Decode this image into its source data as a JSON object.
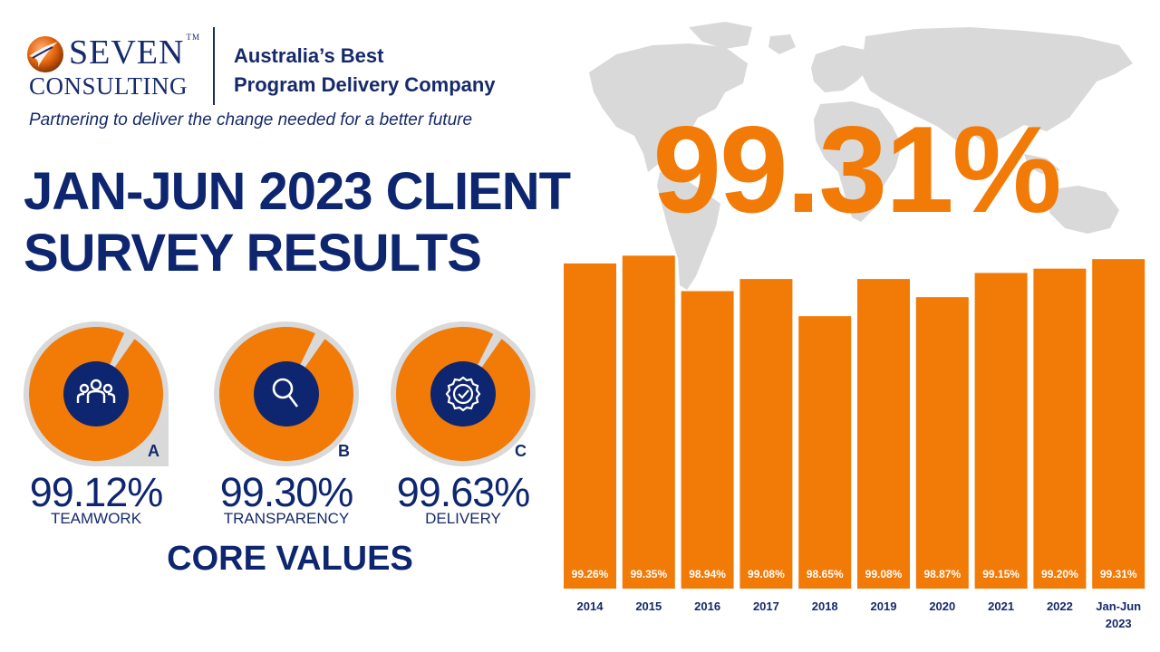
{
  "brand": {
    "name_top": "SEVEN",
    "name_bottom": "CONSULTING",
    "tm": "TM",
    "tagline_line1": "Australia’s Best",
    "tagline_line2": "Program Delivery Company",
    "subtitle": "Partnering to deliver the change needed for a better future"
  },
  "headline": {
    "line1": "JAN-JUN 2023 CLIENT",
    "line2": "SURVEY RESULTS"
  },
  "core_values": {
    "title": "CORE VALUES",
    "items": [
      {
        "letter": "A",
        "percent": "99.12%",
        "label": "TEAMWORK",
        "icon": "team-icon",
        "fill_fraction": 0.9912
      },
      {
        "letter": "B",
        "percent": "99.30%",
        "label": "TRANSPARENCY",
        "icon": "magnifier-icon",
        "fill_fraction": 0.993
      },
      {
        "letter": "C",
        "percent": "99.63%",
        "label": "DELIVERY",
        "icon": "badge-check-icon",
        "fill_fraction": 0.9963
      }
    ]
  },
  "highlight": {
    "value": "99.31%"
  },
  "colors": {
    "orange": "#F27A07",
    "navy": "#0E2670",
    "dial_bg": "#D9D9D9",
    "map": "#D9D9D9"
  },
  "chart_data": {
    "type": "bar",
    "categories": [
      "2014",
      "2015",
      "2016",
      "2017",
      "2018",
      "2019",
      "2020",
      "2021",
      "2022",
      "Jan-Jun 2023"
    ],
    "values": [
      99.26,
      99.35,
      98.94,
      99.08,
      98.65,
      99.08,
      98.87,
      99.15,
      99.2,
      99.31
    ],
    "data_labels": [
      "99.26%",
      "99.35%",
      "98.94%",
      "99.08%",
      "98.65%",
      "99.08%",
      "98.87%",
      "99.15%",
      "99.20%",
      "99.31%"
    ],
    "title": "",
    "xlabel": "",
    "ylabel": "",
    "ylim": [
      95.5,
      99.5
    ],
    "grid": false,
    "color": "#F27A07"
  }
}
